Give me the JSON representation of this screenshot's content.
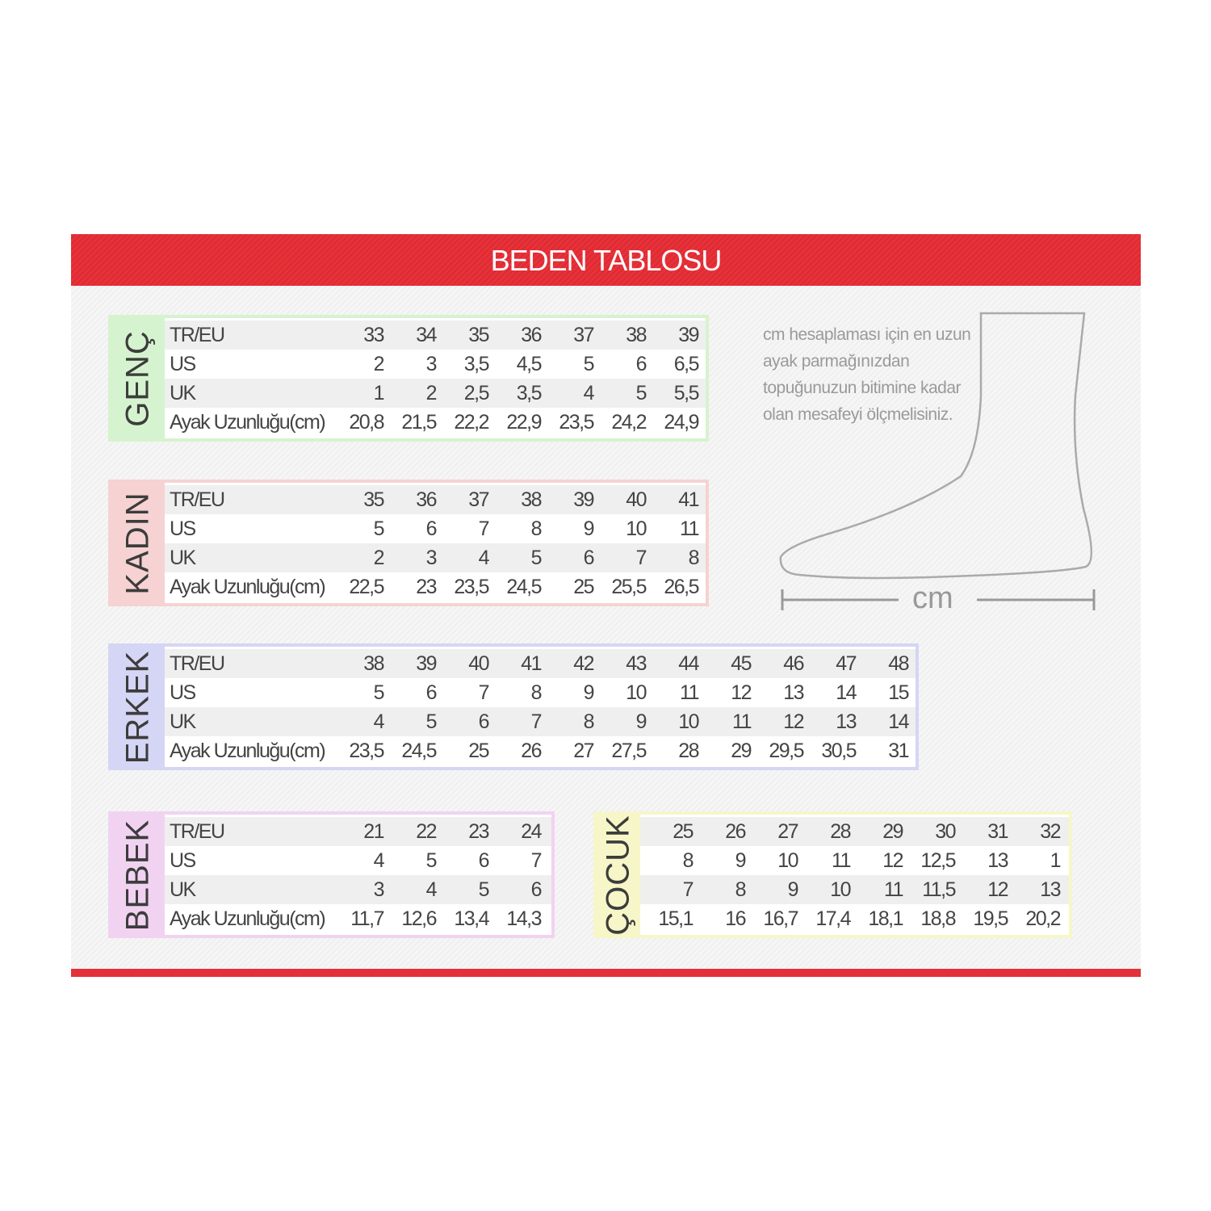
{
  "title": "BEDEN TABLOSU",
  "note": "cm hesaplaması için en uzun ayak parmağınızdan topuğunuzun bitimine kadar olan mesafeyi ölçmelisiniz.",
  "ruler_label": "cm",
  "colors": {
    "header": "#e3303a",
    "genc": "#d6f3cf",
    "kadin": "#f6d2d2",
    "erkek": "#d5d5f5",
    "bebek": "#f1d3f1",
    "cocuk": "#f6f6c8"
  },
  "tables": [
    {
      "id": "genc",
      "label": "GENÇ",
      "rows": [
        {
          "name": "TR/EU",
          "values": [
            "33",
            "34",
            "35",
            "36",
            "37",
            "38",
            "39"
          ]
        },
        {
          "name": "US",
          "values": [
            "2",
            "3",
            "3,5",
            "4,5",
            "5",
            "6",
            "6,5"
          ]
        },
        {
          "name": "UK",
          "values": [
            "1",
            "2",
            "2,5",
            "3,5",
            "4",
            "5",
            "5,5"
          ]
        },
        {
          "name": "Ayak Uzunluğu(cm)",
          "values": [
            "20,8",
            "21,5",
            "22,2",
            "22,9",
            "23,5",
            "24,2",
            "24,9"
          ]
        }
      ]
    },
    {
      "id": "kadin",
      "label": "KADIN",
      "rows": [
        {
          "name": "TR/EU",
          "values": [
            "35",
            "36",
            "37",
            "38",
            "39",
            "40",
            "41"
          ]
        },
        {
          "name": "US",
          "values": [
            "5",
            "6",
            "7",
            "8",
            "9",
            "10",
            "11"
          ]
        },
        {
          "name": "UK",
          "values": [
            "2",
            "3",
            "4",
            "5",
            "6",
            "7",
            "8"
          ]
        },
        {
          "name": "Ayak Uzunluğu(cm)",
          "values": [
            "22,5",
            "23",
            "23,5",
            "24,5",
            "25",
            "25,5",
            "26,5"
          ]
        }
      ]
    },
    {
      "id": "erkek",
      "label": "ERKEK",
      "rows": [
        {
          "name": "TR/EU",
          "values": [
            "38",
            "39",
            "40",
            "41",
            "42",
            "43",
            "44",
            "45",
            "46",
            "47",
            "48"
          ]
        },
        {
          "name": "US",
          "values": [
            "5",
            "6",
            "7",
            "8",
            "9",
            "10",
            "11",
            "12",
            "13",
            "14",
            "15"
          ]
        },
        {
          "name": "UK",
          "values": [
            "4",
            "5",
            "6",
            "7",
            "8",
            "9",
            "10",
            "11",
            "12",
            "13",
            "14"
          ]
        },
        {
          "name": "Ayak Uzunluğu(cm)",
          "values": [
            "23,5",
            "24,5",
            "25",
            "26",
            "27",
            "27,5",
            "28",
            "29",
            "29,5",
            "30,5",
            "31"
          ]
        }
      ]
    },
    {
      "id": "bebek",
      "label": "BEBEK",
      "rows": [
        {
          "name": "TR/EU",
          "values": [
            "21",
            "22",
            "23",
            "24"
          ]
        },
        {
          "name": "US",
          "values": [
            "4",
            "5",
            "6",
            "7"
          ]
        },
        {
          "name": "UK",
          "values": [
            "3",
            "4",
            "5",
            "6"
          ]
        },
        {
          "name": "Ayak Uzunluğu(cm)",
          "values": [
            "11,7",
            "12,6",
            "13,4",
            "14,3"
          ]
        }
      ]
    },
    {
      "id": "cocuk",
      "label": "ÇOCUK",
      "rows": [
        {
          "name": "",
          "values": [
            "25",
            "26",
            "27",
            "28",
            "29",
            "30",
            "31",
            "32"
          ]
        },
        {
          "name": "",
          "values": [
            "8",
            "9",
            "10",
            "11",
            "12",
            "12,5",
            "13",
            "1"
          ]
        },
        {
          "name": "",
          "values": [
            "7",
            "8",
            "9",
            "10",
            "11",
            "11,5",
            "12",
            "13"
          ]
        },
        {
          "name": "",
          "values": [
            "15,1",
            "16",
            "16,7",
            "17,4",
            "18,1",
            "18,8",
            "19,5",
            "20,2"
          ]
        }
      ]
    }
  ]
}
